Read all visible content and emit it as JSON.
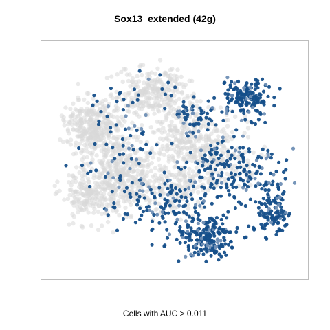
{
  "chart_data": {
    "type": "scatter",
    "title": "Sox13_extended (42g)",
    "xlabel": "Cells with AUC > 0.011",
    "ylabel": "",
    "axes_shown": false,
    "grid": false,
    "legend": "none",
    "colors": {
      "low": "#d9d9d9",
      "mid": "#6f8fb5",
      "high": "#154f8a",
      "frame": "#bdbdbd"
    },
    "series": [
      {
        "label_hint": "cells below threshold (grey)",
        "color": "#d9d9d9",
        "clusters": [
          {
            "center": [
              0.17,
              0.35
            ],
            "spread": [
              0.08,
              0.08
            ],
            "count": 320
          },
          {
            "center": [
              0.28,
              0.55
            ],
            "spread": [
              0.1,
              0.12
            ],
            "count": 380
          },
          {
            "center": [
              0.4,
              0.2
            ],
            "spread": [
              0.1,
              0.08
            ],
            "count": 260
          },
          {
            "center": [
              0.55,
              0.38
            ],
            "spread": [
              0.12,
              0.1
            ],
            "count": 260
          },
          {
            "center": [
              0.15,
              0.65
            ],
            "spread": [
              0.07,
              0.08
            ],
            "count": 180
          },
          {
            "center": [
              0.65,
              0.5
            ],
            "spread": [
              0.1,
              0.08
            ],
            "count": 160
          },
          {
            "center": [
              0.48,
              0.62
            ],
            "spread": [
              0.12,
              0.1
            ],
            "count": 200
          }
        ]
      },
      {
        "label_hint": "cells above threshold (blue)",
        "color": "#154f8a",
        "clusters": [
          {
            "center": [
              0.78,
              0.22
            ],
            "spread": [
              0.07,
              0.06
            ],
            "count": 150
          },
          {
            "center": [
              0.62,
              0.85
            ],
            "spread": [
              0.08,
              0.06
            ],
            "count": 200
          },
          {
            "center": [
              0.88,
              0.72
            ],
            "spread": [
              0.05,
              0.08
            ],
            "count": 120
          },
          {
            "center": [
              0.72,
              0.55
            ],
            "spread": [
              0.14,
              0.12
            ],
            "count": 190
          },
          {
            "center": [
              0.45,
              0.7
            ],
            "spread": [
              0.14,
              0.1
            ],
            "count": 130
          },
          {
            "center": [
              0.3,
              0.4
            ],
            "spread": [
              0.15,
              0.2
            ],
            "count": 80
          },
          {
            "center": [
              0.57,
              0.3
            ],
            "spread": [
              0.08,
              0.06
            ],
            "count": 60
          }
        ]
      }
    ]
  }
}
